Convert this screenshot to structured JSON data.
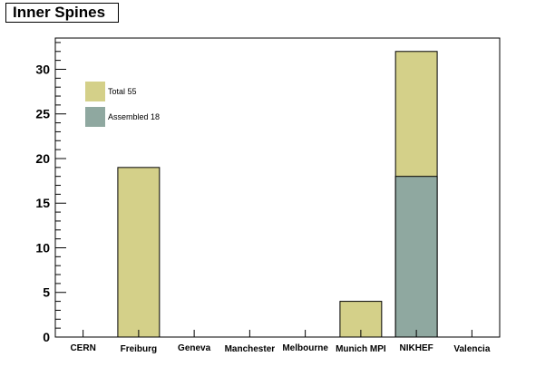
{
  "chart_data": {
    "type": "bar",
    "title": "Inner Spines",
    "xlabel": "",
    "ylabel": "",
    "categories": [
      "CERN",
      "Freiburg",
      "Geneva",
      "Manchester",
      "Melbourne",
      "Munich MPI",
      "NIKHEF",
      "Valencia"
    ],
    "series": [
      {
        "name": "Total 55",
        "color": "#d4d089",
        "values": [
          0,
          19,
          0,
          0,
          0,
          4,
          32,
          0
        ]
      },
      {
        "name": "Assembled 18",
        "color": "#8fa8a0",
        "values": [
          0,
          0,
          0,
          0,
          0,
          0,
          18,
          0
        ]
      }
    ],
    "ylim": [
      0,
      33.5
    ],
    "yticks": [
      0,
      5,
      10,
      15,
      20,
      25,
      30
    ],
    "ytick_labels": [
      "0",
      "5",
      "10",
      "15",
      "20",
      "25",
      "30"
    ],
    "grid": false,
    "legend_position": "top-left",
    "legend": [
      {
        "label": "Total 55",
        "color": "#d4d089"
      },
      {
        "label": "Assembled 18",
        "color": "#8fa8a0"
      }
    ]
  }
}
